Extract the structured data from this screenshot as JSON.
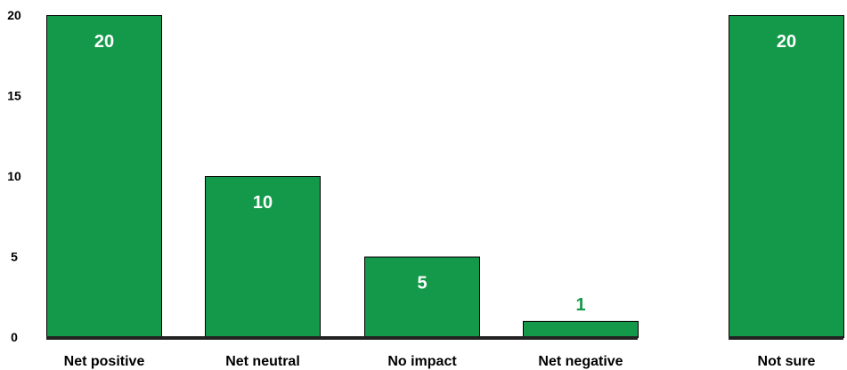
{
  "chart_data": {
    "type": "bar",
    "title": "",
    "xlabel": "",
    "ylabel": "",
    "categories": [
      "Net positive",
      "Net neutral",
      "No impact",
      "Net negative",
      "Not sure"
    ],
    "values": [
      20,
      10,
      5,
      1,
      20
    ],
    "ylim": [
      0,
      20
    ],
    "yticks": [
      "0",
      "5",
      "10",
      "15",
      "20"
    ],
    "data_labels": [
      "20",
      "10",
      "5",
      "1",
      "20"
    ],
    "grid": false,
    "legend": "none",
    "colors": {
      "bar_fill": "#14994a",
      "bar_stroke": "#000000",
      "baseline": "#222222",
      "label_inside": "#ffffff",
      "label_outside": "#14994a"
    }
  }
}
